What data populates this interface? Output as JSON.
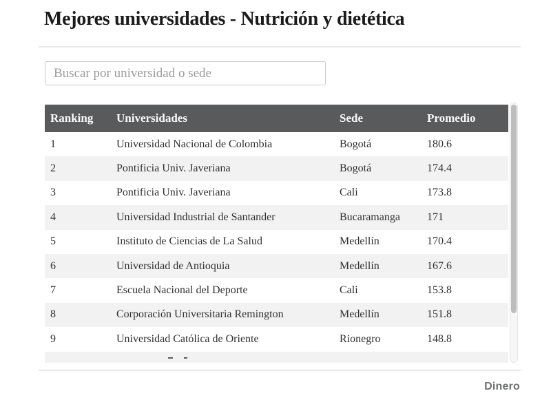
{
  "page": {
    "title": "Mejores universidades - Nutrición y dietética",
    "brand": "Dinero"
  },
  "search": {
    "placeholder": "Buscar por universidad o sede",
    "value": ""
  },
  "table": {
    "columns": [
      "Ranking",
      "Universidades",
      "Sede",
      "Promedio"
    ],
    "rows": [
      {
        "ranking": "1",
        "universidad": "Universidad Nacional de Colombia",
        "sede": "Bogotá",
        "promedio": "180.6"
      },
      {
        "ranking": "2",
        "universidad": "Pontificia Univ. Javeriana",
        "sede": "Bogotá",
        "promedio": "174.4"
      },
      {
        "ranking": "3",
        "universidad": "Pontificia Univ. Javeriana",
        "sede": "Cali",
        "promedio": "173.8"
      },
      {
        "ranking": "4",
        "universidad": "Universidad Industrial de Santander",
        "sede": "Bucaramanga",
        "promedio": "171"
      },
      {
        "ranking": "5",
        "universidad": "Instituto de Ciencias de La Salud",
        "sede": "Medellín",
        "promedio": "170.4"
      },
      {
        "ranking": "6",
        "universidad": "Universidad de Antioquia",
        "sede": "Medellín",
        "promedio": "167.6"
      },
      {
        "ranking": "7",
        "universidad": "Escuela Nacional del Deporte",
        "sede": "Cali",
        "promedio": "153.8"
      },
      {
        "ranking": "8",
        "universidad": "Corporación Universitaria Remington",
        "sede": "Medellín",
        "promedio": "151.8"
      },
      {
        "ranking": "9",
        "universidad": "Universidad Católica de Oriente",
        "sede": "Rionegro",
        "promedio": "148.8"
      }
    ],
    "partial_row_visible": true
  },
  "colors": {
    "header_bg": "#595a5c",
    "header_text": "#fafafa",
    "row_alt_bg": "#f2f2f2",
    "body_text": "#303030",
    "brand_text": "#6f7072",
    "divider": "#e9e9e9"
  }
}
